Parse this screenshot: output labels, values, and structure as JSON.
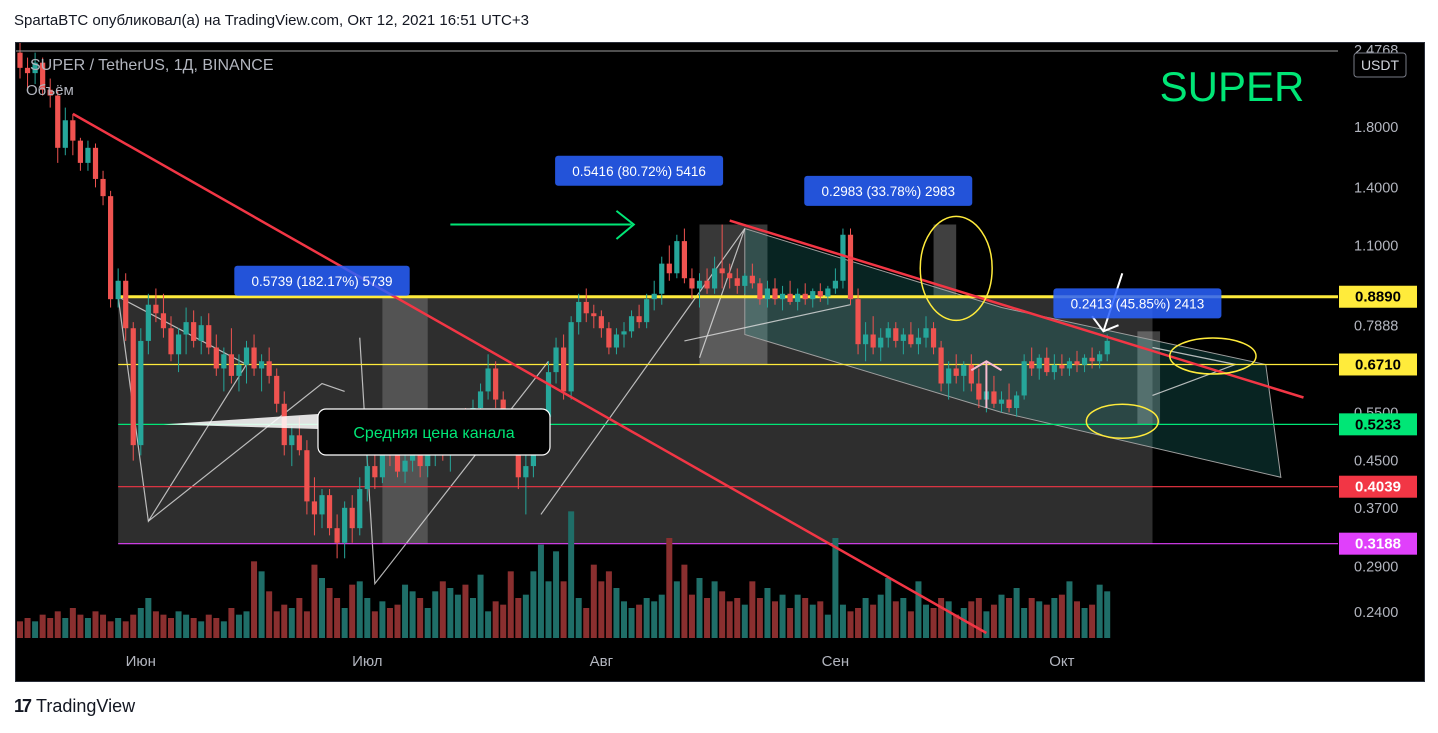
{
  "header": {
    "publisher_line": "SpartaBTC опубликовал(а) на TradingView.com, Окт 12, 2021 16:51 UTC+3"
  },
  "footer": {
    "brand": "TradingView",
    "logo_icon": "tradingview-logo-icon"
  },
  "chart_data": {
    "type": "candlestick",
    "symbol_line": "SUPER / TetherUS, 1Д, BINANCE",
    "volume_label": "Объём",
    "big_label": "SUPER",
    "currency": "USDT",
    "y_scale": "log",
    "ylim": [
      0.22,
      2.55
    ],
    "y_ticks": [
      {
        "value": 2.4768,
        "label": "2.4768"
      },
      {
        "value": 1.8,
        "label": "1.8000"
      },
      {
        "value": 1.4,
        "label": "1.4000"
      },
      {
        "value": 1.1,
        "label": "1.1000"
      },
      {
        "value": 0.7888,
        "label": "0.7888"
      },
      {
        "value": 0.55,
        "label": "0.5500"
      },
      {
        "value": 0.45,
        "label": "0.4500"
      },
      {
        "value": 0.37,
        "label": "0.3700"
      },
      {
        "value": 0.29,
        "label": "0.2900"
      },
      {
        "value": 0.24,
        "label": "0.2400"
      }
    ],
    "x_ticks": [
      {
        "day": 16,
        "label": "Июн"
      },
      {
        "day": 46,
        "label": "Июл"
      },
      {
        "day": 77,
        "label": "Авг"
      },
      {
        "day": 108,
        "label": "Сен"
      },
      {
        "day": 138,
        "label": "Окт"
      }
    ],
    "price_levels": [
      {
        "value": 0.889,
        "label": "0.8890",
        "color": "#ffeb3b",
        "text_color": "#000000"
      },
      {
        "value": 0.671,
        "label": "0.6710",
        "color": "#ffeb3b",
        "text_color": "#000000"
      },
      {
        "value": 0.5233,
        "label": "0.5233",
        "color": "#00e676",
        "text_color": "#000000"
      },
      {
        "value": 0.4039,
        "label": "0.4039",
        "color": "#f23645",
        "text_color": "#ffffff"
      },
      {
        "value": 0.3188,
        "label": "0.3188",
        "color": "#e040fb",
        "text_color": "#ffffff"
      }
    ],
    "measure_labels": [
      {
        "text": "0.5739 (182.17%) 5739",
        "day": 40,
        "value": 0.95
      },
      {
        "text": "0.5416 (80.72%) 5416",
        "day": 82,
        "value": 1.5
      },
      {
        "text": "0.2983 (33.78%) 2983",
        "day": 115,
        "value": 1.38
      },
      {
        "text": "0.2413 (45.85%) 2413",
        "day": 148,
        "value": 0.865
      }
    ],
    "annotation": "Средняя цена канала",
    "colors": {
      "up": "#26a69a",
      "down": "#ef5350",
      "trend": "#f23645",
      "green_arrow": "#00e676",
      "yellow": "#ffeb3b"
    },
    "candles": [
      [
        0,
        2.45,
        2.6,
        2.2,
        2.3
      ],
      [
        1,
        2.3,
        2.4,
        2.1,
        2.25
      ],
      [
        2,
        2.25,
        2.45,
        2.15,
        2.35
      ],
      [
        3,
        2.35,
        2.4,
        2.05,
        2.1
      ],
      [
        4,
        2.1,
        2.2,
        1.95,
        2.05
      ],
      [
        5,
        2.05,
        2.1,
        1.55,
        1.65
      ],
      [
        6,
        1.65,
        1.95,
        1.6,
        1.85
      ],
      [
        7,
        1.85,
        1.9,
        1.6,
        1.7
      ],
      [
        8,
        1.7,
        1.72,
        1.5,
        1.55
      ],
      [
        9,
        1.55,
        1.7,
        1.5,
        1.65
      ],
      [
        10,
        1.65,
        1.68,
        1.4,
        1.45
      ],
      [
        11,
        1.45,
        1.5,
        1.3,
        1.35
      ],
      [
        12,
        1.35,
        1.38,
        0.85,
        0.88
      ],
      [
        13,
        0.88,
        1.0,
        0.85,
        0.95
      ],
      [
        14,
        0.95,
        0.98,
        0.74,
        0.78
      ],
      [
        15,
        0.78,
        0.8,
        0.45,
        0.48
      ],
      [
        16,
        0.48,
        0.78,
        0.46,
        0.74
      ],
      [
        17,
        0.74,
        0.9,
        0.7,
        0.86
      ],
      [
        18,
        0.86,
        0.92,
        0.8,
        0.83
      ],
      [
        19,
        0.83,
        0.9,
        0.75,
        0.78
      ],
      [
        20,
        0.78,
        0.82,
        0.68,
        0.7
      ],
      [
        21,
        0.7,
        0.78,
        0.65,
        0.76
      ],
      [
        22,
        0.76,
        0.85,
        0.7,
        0.8
      ],
      [
        23,
        0.8,
        0.84,
        0.72,
        0.74
      ],
      [
        24,
        0.74,
        0.82,
        0.7,
        0.79
      ],
      [
        25,
        0.79,
        0.83,
        0.7,
        0.72
      ],
      [
        26,
        0.72,
        0.76,
        0.64,
        0.66
      ],
      [
        27,
        0.66,
        0.72,
        0.6,
        0.7
      ],
      [
        28,
        0.7,
        0.78,
        0.62,
        0.64
      ],
      [
        29,
        0.64,
        0.7,
        0.6,
        0.67
      ],
      [
        30,
        0.67,
        0.74,
        0.62,
        0.72
      ],
      [
        31,
        0.72,
        0.76,
        0.64,
        0.66
      ],
      [
        32,
        0.66,
        0.7,
        0.6,
        0.68
      ],
      [
        33,
        0.68,
        0.72,
        0.62,
        0.64
      ],
      [
        34,
        0.64,
        0.66,
        0.55,
        0.57
      ],
      [
        35,
        0.57,
        0.6,
        0.46,
        0.48
      ],
      [
        36,
        0.48,
        0.52,
        0.44,
        0.5
      ],
      [
        37,
        0.5,
        0.54,
        0.46,
        0.47
      ],
      [
        38,
        0.47,
        0.49,
        0.36,
        0.38
      ],
      [
        39,
        0.38,
        0.42,
        0.33,
        0.36
      ],
      [
        40,
        0.36,
        0.4,
        0.34,
        0.39
      ],
      [
        41,
        0.39,
        0.4,
        0.33,
        0.34
      ],
      [
        42,
        0.34,
        0.36,
        0.3,
        0.32
      ],
      [
        43,
        0.32,
        0.38,
        0.3,
        0.37
      ],
      [
        44,
        0.37,
        0.39,
        0.32,
        0.34
      ],
      [
        45,
        0.34,
        0.42,
        0.33,
        0.4
      ],
      [
        46,
        0.4,
        0.46,
        0.38,
        0.44
      ],
      [
        47,
        0.44,
        0.48,
        0.4,
        0.42
      ],
      [
        48,
        0.42,
        0.52,
        0.41,
        0.5
      ],
      [
        49,
        0.5,
        0.52,
        0.44,
        0.46
      ],
      [
        50,
        0.46,
        0.5,
        0.42,
        0.43
      ],
      [
        51,
        0.43,
        0.47,
        0.41,
        0.45
      ],
      [
        52,
        0.45,
        0.5,
        0.43,
        0.47
      ],
      [
        53,
        0.47,
        0.49,
        0.42,
        0.44
      ],
      [
        54,
        0.44,
        0.48,
        0.42,
        0.46
      ],
      [
        55,
        0.46,
        0.52,
        0.44,
        0.5
      ],
      [
        56,
        0.5,
        0.54,
        0.45,
        0.47
      ],
      [
        57,
        0.47,
        0.5,
        0.43,
        0.48
      ],
      [
        58,
        0.48,
        0.53,
        0.46,
        0.51
      ],
      [
        59,
        0.51,
        0.56,
        0.48,
        0.49
      ],
      [
        60,
        0.49,
        0.58,
        0.48,
        0.56
      ],
      [
        61,
        0.56,
        0.62,
        0.52,
        0.6
      ],
      [
        62,
        0.6,
        0.7,
        0.58,
        0.66
      ],
      [
        63,
        0.66,
        0.68,
        0.56,
        0.58
      ],
      [
        64,
        0.58,
        0.6,
        0.5,
        0.52
      ],
      [
        65,
        0.52,
        0.54,
        0.46,
        0.48
      ],
      [
        66,
        0.48,
        0.5,
        0.4,
        0.42
      ],
      [
        67,
        0.42,
        0.48,
        0.36,
        0.44
      ],
      [
        68,
        0.44,
        0.5,
        0.42,
        0.47
      ],
      [
        69,
        0.47,
        0.56,
        0.46,
        0.54
      ],
      [
        70,
        0.54,
        0.68,
        0.52,
        0.65
      ],
      [
        71,
        0.65,
        0.75,
        0.62,
        0.72
      ],
      [
        72,
        0.72,
        0.76,
        0.58,
        0.6
      ],
      [
        73,
        0.6,
        0.82,
        0.58,
        0.8
      ],
      [
        74,
        0.8,
        0.9,
        0.76,
        0.87
      ],
      [
        75,
        0.87,
        0.92,
        0.8,
        0.83
      ],
      [
        76,
        0.83,
        0.86,
        0.78,
        0.82
      ],
      [
        77,
        0.82,
        0.84,
        0.75,
        0.78
      ],
      [
        78,
        0.78,
        0.8,
        0.7,
        0.72
      ],
      [
        79,
        0.72,
        0.78,
        0.7,
        0.76
      ],
      [
        80,
        0.76,
        0.8,
        0.72,
        0.77
      ],
      [
        81,
        0.77,
        0.84,
        0.75,
        0.82
      ],
      [
        82,
        0.82,
        0.86,
        0.78,
        0.8
      ],
      [
        83,
        0.8,
        0.9,
        0.78,
        0.88
      ],
      [
        84,
        0.88,
        0.95,
        0.84,
        0.9
      ],
      [
        85,
        0.9,
        1.05,
        0.86,
        1.02
      ],
      [
        86,
        1.02,
        1.1,
        0.95,
        0.98
      ],
      [
        87,
        0.98,
        1.15,
        0.96,
        1.12
      ],
      [
        88,
        1.12,
        1.18,
        0.94,
        0.96
      ],
      [
        89,
        0.96,
        1.0,
        0.88,
        0.92
      ],
      [
        90,
        0.92,
        0.98,
        0.85,
        0.95
      ],
      [
        91,
        0.95,
        1.0,
        0.9,
        0.92
      ],
      [
        92,
        0.92,
        1.05,
        0.9,
        1.0
      ],
      [
        93,
        1.0,
        1.2,
        0.92,
        0.98
      ],
      [
        94,
        0.98,
        1.02,
        0.92,
        0.96
      ],
      [
        95,
        0.96,
        1.0,
        0.9,
        0.93
      ],
      [
        96,
        0.93,
        0.98,
        0.9,
        0.97
      ],
      [
        97,
        0.97,
        1.02,
        0.92,
        0.94
      ],
      [
        98,
        0.94,
        0.96,
        0.86,
        0.88
      ],
      [
        99,
        0.88,
        0.95,
        0.85,
        0.92
      ],
      [
        100,
        0.92,
        0.96,
        0.86,
        0.88
      ],
      [
        101,
        0.88,
        0.93,
        0.84,
        0.9
      ],
      [
        102,
        0.9,
        0.95,
        0.86,
        0.87
      ],
      [
        103,
        0.87,
        0.92,
        0.84,
        0.9
      ],
      [
        104,
        0.9,
        0.94,
        0.86,
        0.88
      ],
      [
        105,
        0.88,
        0.92,
        0.85,
        0.91
      ],
      [
        106,
        0.91,
        0.94,
        0.87,
        0.89
      ],
      [
        107,
        0.89,
        0.93,
        0.86,
        0.92
      ],
      [
        108,
        0.92,
        1.0,
        0.9,
        0.95
      ],
      [
        109,
        0.95,
        1.18,
        0.92,
        1.15
      ],
      [
        110,
        1.15,
        1.18,
        0.86,
        0.88
      ],
      [
        111,
        0.88,
        0.92,
        0.7,
        0.73
      ],
      [
        112,
        0.73,
        0.8,
        0.68,
        0.76
      ],
      [
        113,
        0.76,
        0.82,
        0.7,
        0.72
      ],
      [
        114,
        0.72,
        0.78,
        0.68,
        0.75
      ],
      [
        115,
        0.75,
        0.8,
        0.72,
        0.78
      ],
      [
        116,
        0.78,
        0.8,
        0.72,
        0.74
      ],
      [
        117,
        0.74,
        0.78,
        0.7,
        0.76
      ],
      [
        118,
        0.76,
        0.8,
        0.72,
        0.73
      ],
      [
        119,
        0.73,
        0.78,
        0.7,
        0.75
      ],
      [
        120,
        0.75,
        0.82,
        0.72,
        0.78
      ],
      [
        121,
        0.78,
        0.8,
        0.7,
        0.72
      ],
      [
        122,
        0.72,
        0.74,
        0.6,
        0.62
      ],
      [
        123,
        0.62,
        0.68,
        0.58,
        0.66
      ],
      [
        124,
        0.66,
        0.7,
        0.62,
        0.64
      ],
      [
        125,
        0.64,
        0.68,
        0.6,
        0.67
      ],
      [
        126,
        0.67,
        0.7,
        0.6,
        0.62
      ],
      [
        127,
        0.62,
        0.66,
        0.56,
        0.58
      ],
      [
        128,
        0.58,
        0.62,
        0.55,
        0.6
      ],
      [
        129,
        0.6,
        0.64,
        0.56,
        0.57
      ],
      [
        130,
        0.57,
        0.6,
        0.55,
        0.58
      ],
      [
        131,
        0.58,
        0.62,
        0.55,
        0.56
      ],
      [
        132,
        0.56,
        0.6,
        0.54,
        0.59
      ],
      [
        133,
        0.59,
        0.7,
        0.58,
        0.68
      ],
      [
        134,
        0.68,
        0.72,
        0.64,
        0.66
      ],
      [
        135,
        0.66,
        0.7,
        0.63,
        0.69
      ],
      [
        136,
        0.69,
        0.72,
        0.64,
        0.65
      ],
      [
        137,
        0.65,
        0.7,
        0.63,
        0.67
      ],
      [
        138,
        0.67,
        0.7,
        0.64,
        0.66
      ],
      [
        139,
        0.66,
        0.69,
        0.64,
        0.68
      ],
      [
        140,
        0.68,
        0.71,
        0.65,
        0.67
      ],
      [
        141,
        0.67,
        0.7,
        0.65,
        0.69
      ],
      [
        142,
        0.69,
        0.72,
        0.66,
        0.68
      ],
      [
        143,
        0.68,
        0.71,
        0.66,
        0.7
      ],
      [
        144,
        0.7,
        0.76,
        0.68,
        0.74
      ]
    ],
    "volumes": [
      5,
      6,
      5,
      7,
      6,
      8,
      6,
      9,
      7,
      6,
      8,
      7,
      5,
      6,
      5,
      7,
      9,
      12,
      8,
      7,
      6,
      8,
      7,
      6,
      5,
      7,
      6,
      5,
      9,
      7,
      8,
      23,
      20,
      14,
      8,
      10,
      9,
      12,
      8,
      22,
      18,
      15,
      12,
      9,
      16,
      17,
      12,
      8,
      11,
      9,
      10,
      16,
      14,
      12,
      9,
      14,
      17,
      15,
      13,
      16,
      12,
      19,
      8,
      11,
      10,
      20,
      12,
      13,
      20,
      28,
      17,
      26,
      17,
      38,
      12,
      9,
      22,
      17,
      20,
      15,
      11,
      9,
      10,
      12,
      11,
      13,
      30,
      17,
      22,
      13,
      18,
      12,
      17,
      14,
      11,
      12,
      10,
      17,
      12,
      15,
      11,
      13,
      9,
      13,
      12,
      10,
      11,
      7,
      30,
      10,
      8,
      9,
      12,
      10,
      13,
      18,
      11,
      12,
      8,
      17,
      10,
      9,
      12,
      11,
      7,
      9,
      11,
      12,
      8,
      10,
      13,
      12,
      15,
      9,
      12,
      11,
      10,
      12,
      13,
      17,
      11,
      9,
      10,
      16,
      14
    ]
  }
}
